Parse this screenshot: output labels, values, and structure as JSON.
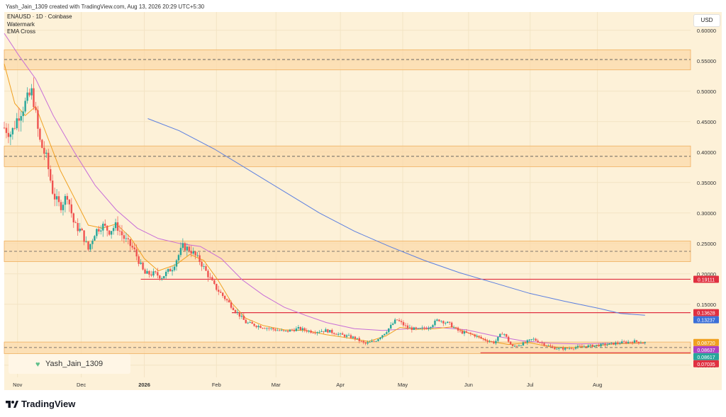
{
  "header": {
    "created_text": "Yash_Jain_1309 created with TradingView.com, Aug 13, 2026 20:29 UTC+5:30"
  },
  "legend": {
    "line1": "ENAUSD · 1D · Coinbase",
    "line2": "Watermark",
    "line3": "EMA Cross"
  },
  "currency_button": "USD",
  "watermark": {
    "icon": "heart-icon",
    "text": "Yash_Jain_1309"
  },
  "footer": {
    "logo_text": "TradingView",
    "logo_icon": "tradingview-logo-icon"
  },
  "colors": {
    "background": "#fdf1d8",
    "zone_fill": "#fbd9a8",
    "zone_border": "#f0b060",
    "up_candle": "#26a69a",
    "down_candle": "#ef5350",
    "ema_fast": "#f0a020",
    "ema_mid": "#c86dd7",
    "ema_slow": "#5b7fe0",
    "support_line": "#e03040"
  },
  "chart_data": {
    "type": "candlestick",
    "symbol": "ENAUSD",
    "timeframe": "1D",
    "exchange": "Coinbase",
    "y_axis": {
      "ticks": [
        "0.60000",
        "0.55000",
        "0.50000",
        "0.45000",
        "0.40000",
        "0.35000",
        "0.30000",
        "0.25000",
        "0.20000",
        "0.15000",
        "0.05000"
      ],
      "tick_values": [
        0.6,
        0.55,
        0.5,
        0.45,
        0.4,
        0.35,
        0.3,
        0.25,
        0.2,
        0.15,
        0.05
      ],
      "ylim": [
        0.03,
        0.63
      ]
    },
    "x_axis": {
      "labels": [
        "Nov",
        "Dec",
        "2026",
        "Feb",
        "Mar",
        "Apr",
        "May",
        "Jun",
        "Jul",
        "Aug"
      ],
      "label_days": [
        19,
        110,
        200,
        303,
        388,
        480,
        569,
        663,
        751,
        847
      ],
      "day_range": [
        0,
        980
      ]
    },
    "zones": [
      {
        "low": 0.535,
        "high": 0.568,
        "mid": 0.552
      },
      {
        "low": 0.376,
        "high": 0.41,
        "mid": 0.393
      },
      {
        "low": 0.22,
        "high": 0.254,
        "mid": 0.237
      },
      {
        "low": 0.069,
        "high": 0.088,
        "mid": 0.079
      }
    ],
    "support_lines": [
      {
        "value": 0.19111,
        "label": "0.19111",
        "from_day": 195
      },
      {
        "value": 0.13628,
        "label": "0.13628",
        "from_day": 325
      },
      {
        "value": 0.07035,
        "label": "0.07035",
        "from_day": 680
      }
    ],
    "price_labels": [
      {
        "value": 0.19111,
        "text": "0.19111",
        "color": "#e03040"
      },
      {
        "value": 0.13628,
        "text": "0.13628",
        "color": "#e03040"
      },
      {
        "value": 0.13237,
        "text": "0.13237",
        "color": "#3b6fd8"
      },
      {
        "value": 0.0872,
        "text": "0.08720",
        "color": "#f0a020"
      },
      {
        "value": 0.08637,
        "text": "0.08637",
        "color": "#b040c0"
      },
      {
        "value": 0.08617,
        "text": "0.08617",
        "color": "#26a69a"
      },
      {
        "value": 0.07035,
        "text": "0.07035",
        "color": "#e03040"
      }
    ],
    "ema_slow": [
      [
        205,
        0.455
      ],
      [
        250,
        0.435
      ],
      [
        300,
        0.405
      ],
      [
        350,
        0.37
      ],
      [
        400,
        0.335
      ],
      [
        450,
        0.3
      ],
      [
        500,
        0.27
      ],
      [
        550,
        0.245
      ],
      [
        600,
        0.222
      ],
      [
        650,
        0.202
      ],
      [
        700,
        0.185
      ],
      [
        750,
        0.168
      ],
      [
        800,
        0.155
      ],
      [
        850,
        0.143
      ],
      [
        880,
        0.135
      ],
      [
        915,
        0.132
      ]
    ],
    "ema_mid": [
      [
        0,
        0.595
      ],
      [
        20,
        0.56
      ],
      [
        45,
        0.52
      ],
      [
        70,
        0.46
      ],
      [
        100,
        0.4
      ],
      [
        130,
        0.345
      ],
      [
        160,
        0.305
      ],
      [
        190,
        0.275
      ],
      [
        220,
        0.258
      ],
      [
        250,
        0.25
      ],
      [
        280,
        0.245
      ],
      [
        310,
        0.225
      ],
      [
        340,
        0.19
      ],
      [
        370,
        0.165
      ],
      [
        400,
        0.145
      ],
      [
        430,
        0.132
      ],
      [
        460,
        0.12
      ],
      [
        500,
        0.11
      ],
      [
        540,
        0.107
      ],
      [
        580,
        0.11
      ],
      [
        620,
        0.112
      ],
      [
        660,
        0.108
      ],
      [
        700,
        0.098
      ],
      [
        740,
        0.09
      ],
      [
        780,
        0.086
      ],
      [
        820,
        0.085
      ],
      [
        860,
        0.086
      ],
      [
        900,
        0.086
      ],
      [
        915,
        0.086
      ]
    ],
    "ema_fast": [
      [
        0,
        0.545
      ],
      [
        15,
        0.48
      ],
      [
        30,
        0.46
      ],
      [
        45,
        0.475
      ],
      [
        60,
        0.43
      ],
      [
        80,
        0.37
      ],
      [
        100,
        0.325
      ],
      [
        120,
        0.28
      ],
      [
        140,
        0.275
      ],
      [
        160,
        0.282
      ],
      [
        180,
        0.26
      ],
      [
        200,
        0.225
      ],
      [
        220,
        0.205
      ],
      [
        245,
        0.215
      ],
      [
        265,
        0.232
      ],
      [
        285,
        0.222
      ],
      [
        305,
        0.19
      ],
      [
        325,
        0.152
      ],
      [
        345,
        0.127
      ],
      [
        370,
        0.115
      ],
      [
        400,
        0.108
      ],
      [
        430,
        0.107
      ],
      [
        460,
        0.1
      ],
      [
        490,
        0.095
      ],
      [
        520,
        0.089
      ],
      [
        545,
        0.098
      ],
      [
        565,
        0.112
      ],
      [
        590,
        0.109
      ],
      [
        615,
        0.11
      ],
      [
        640,
        0.113
      ],
      [
        665,
        0.102
      ],
      [
        690,
        0.09
      ],
      [
        720,
        0.084
      ],
      [
        750,
        0.087
      ],
      [
        780,
        0.08
      ],
      [
        810,
        0.079
      ],
      [
        840,
        0.081
      ],
      [
        870,
        0.085
      ],
      [
        900,
        0.086
      ],
      [
        915,
        0.087
      ]
    ],
    "candle_path": [
      [
        0,
        0.44
      ],
      [
        10,
        0.43
      ],
      [
        20,
        0.46
      ],
      [
        30,
        0.48
      ],
      [
        40,
        0.5
      ],
      [
        50,
        0.42
      ],
      [
        60,
        0.39
      ],
      [
        70,
        0.33
      ],
      [
        80,
        0.31
      ],
      [
        90,
        0.33
      ],
      [
        100,
        0.28
      ],
      [
        110,
        0.27
      ],
      [
        120,
        0.24
      ],
      [
        130,
        0.27
      ],
      [
        140,
        0.28
      ],
      [
        150,
        0.27
      ],
      [
        160,
        0.28
      ],
      [
        170,
        0.26
      ],
      [
        185,
        0.24
      ],
      [
        200,
        0.2
      ],
      [
        215,
        0.2
      ],
      [
        225,
        0.195
      ],
      [
        240,
        0.21
      ],
      [
        255,
        0.245
      ],
      [
        265,
        0.24
      ],
      [
        280,
        0.22
      ],
      [
        290,
        0.2
      ],
      [
        300,
        0.18
      ],
      [
        315,
        0.16
      ],
      [
        330,
        0.14
      ],
      [
        345,
        0.12
      ],
      [
        360,
        0.115
      ],
      [
        380,
        0.11
      ],
      [
        400,
        0.105
      ],
      [
        420,
        0.11
      ],
      [
        440,
        0.105
      ],
      [
        460,
        0.107
      ],
      [
        480,
        0.1
      ],
      [
        500,
        0.095
      ],
      [
        515,
        0.085
      ],
      [
        530,
        0.09
      ],
      [
        545,
        0.105
      ],
      [
        560,
        0.125
      ],
      [
        575,
        0.112
      ],
      [
        590,
        0.108
      ],
      [
        605,
        0.112
      ],
      [
        620,
        0.125
      ],
      [
        635,
        0.118
      ],
      [
        650,
        0.105
      ],
      [
        670,
        0.1
      ],
      [
        685,
        0.092
      ],
      [
        700,
        0.087
      ],
      [
        712,
        0.105
      ],
      [
        725,
        0.08
      ],
      [
        740,
        0.085
      ],
      [
        755,
        0.093
      ],
      [
        770,
        0.085
      ],
      [
        785,
        0.078
      ],
      [
        800,
        0.077
      ],
      [
        820,
        0.08
      ],
      [
        840,
        0.082
      ],
      [
        860,
        0.084
      ],
      [
        880,
        0.087
      ],
      [
        900,
        0.089
      ],
      [
        915,
        0.087
      ]
    ],
    "grid": true,
    "legend_position": "top-left"
  }
}
